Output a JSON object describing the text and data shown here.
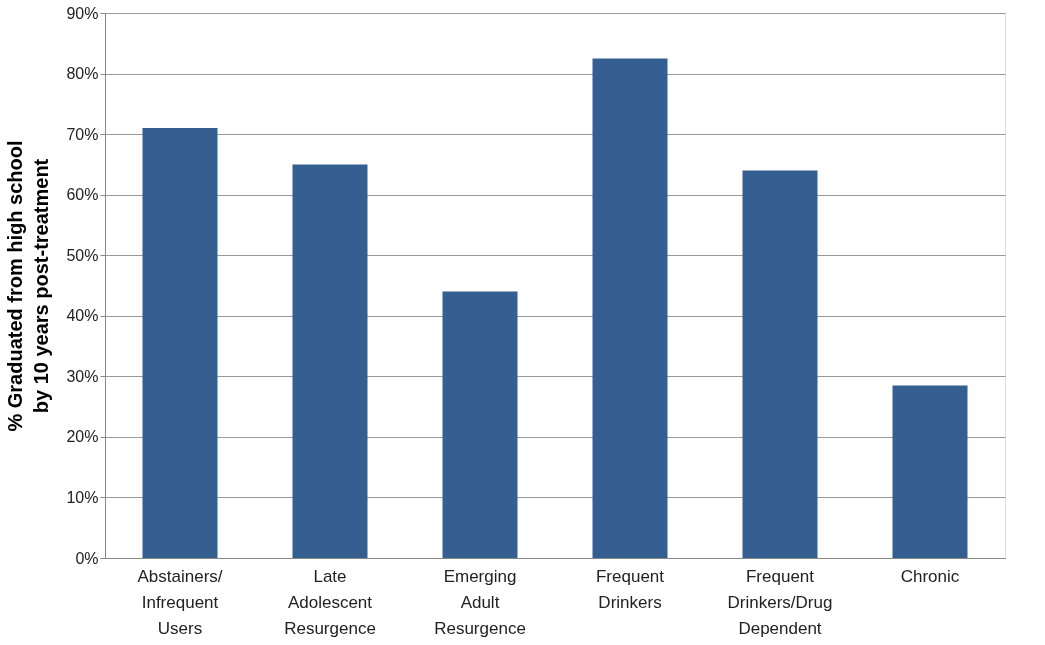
{
  "chart_data": {
    "type": "bar",
    "ylabel": "% Graduated from high school\nby 10 years post-treatment",
    "categories": [
      "Abstainers/\nInfrequent\nUsers",
      "Late\nAdolescent\nResurgence",
      "Emerging\nAdult\nResurgence",
      "Frequent\nDrinkers",
      "Frequent\nDrinkers/Drug\nDependent",
      "Chronic"
    ],
    "values": [
      71,
      65,
      44,
      82.5,
      64,
      28.5
    ],
    "color": "#355f91",
    "ylim": [
      0,
      90
    ],
    "yticks": [
      {
        "value": 0,
        "label": "0%"
      },
      {
        "value": 10,
        "label": "10%"
      },
      {
        "value": 20,
        "label": "20%"
      },
      {
        "value": 30,
        "label": "30%"
      },
      {
        "value": 40,
        "label": "40%"
      },
      {
        "value": 50,
        "label": "50%"
      },
      {
        "value": 60,
        "label": "60%"
      },
      {
        "value": 70,
        "label": "70%"
      },
      {
        "value": 80,
        "label": "80%"
      },
      {
        "value": 90,
        "label": "90%"
      }
    ],
    "grid": "y"
  }
}
